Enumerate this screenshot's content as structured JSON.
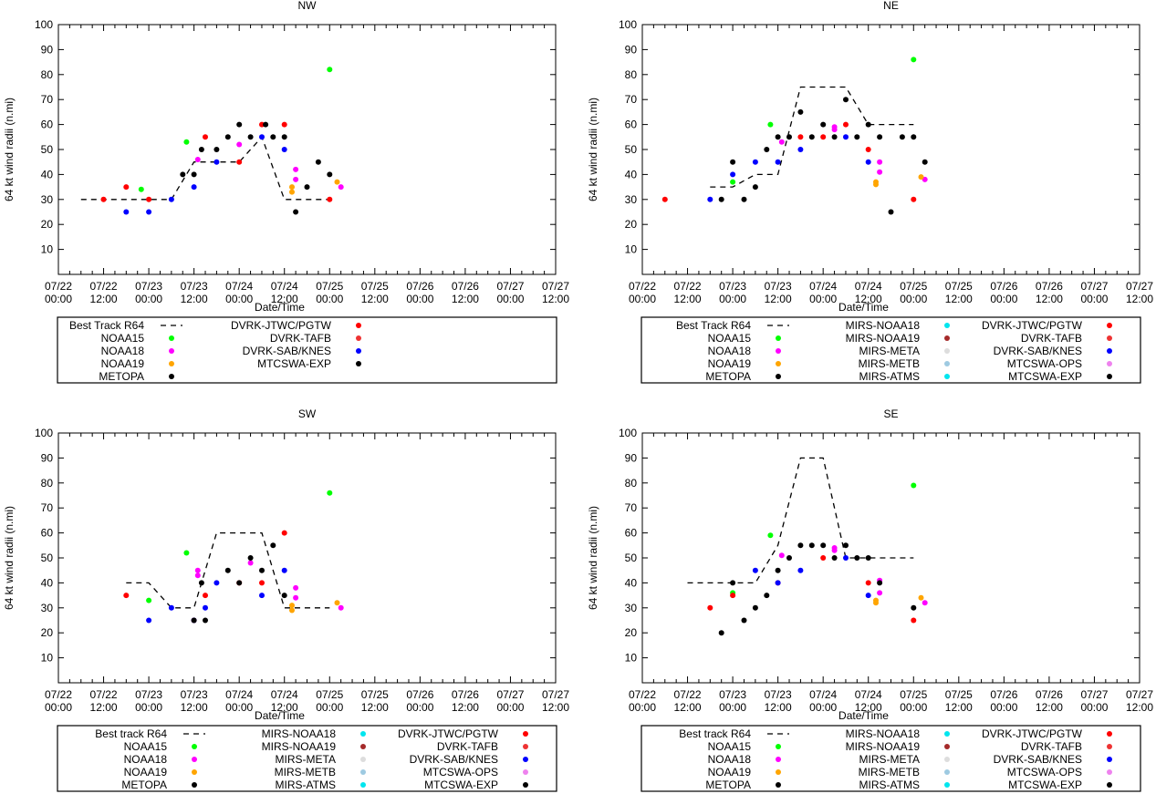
{
  "x_tick_labels": [
    [
      "07/22",
      "00:00"
    ],
    [
      "07/22",
      "12:00"
    ],
    [
      "07/23",
      "00:00"
    ],
    [
      "07/23",
      "12:00"
    ],
    [
      "07/24",
      "00:00"
    ],
    [
      "07/24",
      "12:00"
    ],
    [
      "07/25",
      "00:00"
    ],
    [
      "07/25",
      "12:00"
    ],
    [
      "07/26",
      "00:00"
    ],
    [
      "07/26",
      "12:00"
    ],
    [
      "07/27",
      "00:00"
    ],
    [
      "07/27",
      "12:00"
    ]
  ],
  "colors": {
    "NOAA15": "#00ff00",
    "NOAA18": "#ff00ff",
    "NOAA19": "#ffa500",
    "METOPA": "#000000",
    "MIRS-NOAA18": "#00e5ee",
    "MIRS-NOAA19": "#a52a2a",
    "MIRS-META": "#dddddd",
    "MIRS-METB": "#9ecae1",
    "MIRS-ATMS": "#00e5ee",
    "DVRK-JTWC/PGTW": "#ff0000",
    "DVRK-TAFB": "#ee3333",
    "DVRK-SAB/KNES": "#0000ff",
    "MTCSWA-OPS": "#ee82ee",
    "MTCSWA-EXP": "#000000"
  },
  "chart_data": [
    {
      "type": "scatter",
      "title": "NW",
      "xlabel": "Date/Time",
      "ylabel": "64 kt wind radii (n.mi)",
      "ylim": [
        0,
        100
      ],
      "xlim": [
        0,
        132
      ],
      "yticks": [
        10,
        20,
        30,
        40,
        50,
        60,
        70,
        80,
        90,
        100
      ],
      "best_track": {
        "name": "Best Track R64",
        "x": [
          6,
          18,
          30,
          36,
          42,
          48,
          54,
          60,
          66,
          72
        ],
        "y": [
          30,
          30,
          30,
          45,
          45,
          45,
          55,
          30,
          30,
          30
        ]
      },
      "legend": [
        [
          "Best Track R64",
          "DVRK-JTWC/PGTW"
        ],
        [
          "NOAA15",
          "DVRK-TAFB"
        ],
        [
          "NOAA18",
          "DVRK-SAB/KNES"
        ],
        [
          "NOAA19",
          "MTCSWA-EXP"
        ],
        [
          "METOPA",
          ""
        ]
      ],
      "series": [
        {
          "name": "NOAA15",
          "points": [
            [
              22,
              34
            ],
            [
              34,
              53
            ],
            [
              72,
              82
            ]
          ]
        },
        {
          "name": "NOAA18",
          "points": [
            [
              37,
              46
            ],
            [
              48,
              52
            ],
            [
              63,
              42
            ],
            [
              63,
              38
            ],
            [
              75,
              35
            ]
          ]
        },
        {
          "name": "NOAA19",
          "points": [
            [
              62,
              35
            ],
            [
              62,
              33
            ],
            [
              74,
              37
            ]
          ]
        },
        {
          "name": "DVRK-JTWC/PGTW",
          "points": [
            [
              12,
              30
            ],
            [
              18,
              35
            ],
            [
              24,
              30
            ],
            [
              39,
              55
            ],
            [
              48,
              45
            ],
            [
              54,
              60
            ],
            [
              60,
              60
            ],
            [
              72,
              30
            ]
          ]
        },
        {
          "name": "DVRK-SAB/KNES",
          "points": [
            [
              18,
              25
            ],
            [
              24,
              25
            ],
            [
              30,
              30
            ],
            [
              36,
              35
            ],
            [
              42,
              45
            ],
            [
              54,
              55
            ],
            [
              60,
              50
            ]
          ]
        },
        {
          "name": "MTCSWA-EXP",
          "points": [
            [
              33,
              40
            ],
            [
              36,
              40
            ],
            [
              38,
              50
            ],
            [
              42,
              50
            ],
            [
              45,
              55
            ],
            [
              48,
              60
            ],
            [
              51,
              55
            ],
            [
              55,
              60
            ],
            [
              57,
              55
            ],
            [
              60,
              55
            ],
            [
              63,
              25
            ],
            [
              66,
              35
            ],
            [
              69,
              45
            ],
            [
              72,
              40
            ]
          ]
        }
      ]
    },
    {
      "type": "scatter",
      "title": "NE",
      "xlabel": "Date/Time",
      "ylabel": "64 kt wind radii (n.mi)",
      "ylim": [
        0,
        100
      ],
      "xlim": [
        0,
        132
      ],
      "yticks": [
        10,
        20,
        30,
        40,
        50,
        60,
        70,
        80,
        90,
        100
      ],
      "best_track": {
        "name": "Best Track R64",
        "x": [
          18,
          24,
          30,
          36,
          42,
          48,
          54,
          60,
          66,
          72
        ],
        "y": [
          35,
          35,
          40,
          40,
          75,
          75,
          75,
          60,
          60,
          60
        ]
      },
      "legend": [
        [
          "Best Track R64",
          "MIRS-NOAA18",
          "DVRK-JTWC/PGTW"
        ],
        [
          "NOAA15",
          "MIRS-NOAA19",
          "DVRK-TAFB"
        ],
        [
          "NOAA18",
          "MIRS-META",
          "DVRK-SAB/KNES"
        ],
        [
          "NOAA19",
          "MIRS-METB",
          "MTCSWA-OPS"
        ],
        [
          "METOPA",
          "MIRS-ATMS",
          "MTCSWA-EXP"
        ]
      ],
      "series": [
        {
          "name": "NOAA15",
          "points": [
            [
              24,
              37
            ],
            [
              34,
              60
            ],
            [
              72,
              86
            ]
          ]
        },
        {
          "name": "NOAA18",
          "points": [
            [
              37,
              53
            ],
            [
              51,
              59
            ],
            [
              51,
              58
            ],
            [
              63,
              41
            ],
            [
              63,
              45
            ],
            [
              75,
              38
            ]
          ]
        },
        {
          "name": "NOAA19",
          "points": [
            [
              62,
              37
            ],
            [
              62,
              36
            ],
            [
              74,
              39
            ]
          ]
        },
        {
          "name": "DVRK-JTWC/PGTW",
          "points": [
            [
              6,
              30
            ],
            [
              42,
              55
            ],
            [
              48,
              55
            ],
            [
              54,
              60
            ],
            [
              60,
              50
            ],
            [
              72,
              30
            ]
          ]
        },
        {
          "name": "DVRK-SAB/KNES",
          "points": [
            [
              18,
              30
            ],
            [
              24,
              40
            ],
            [
              30,
              45
            ],
            [
              36,
              45
            ],
            [
              42,
              50
            ],
            [
              54,
              55
            ],
            [
              60,
              45
            ]
          ]
        },
        {
          "name": "MTCSWA-EXP",
          "points": [
            [
              21,
              30
            ],
            [
              24,
              45
            ],
            [
              27,
              30
            ],
            [
              30,
              35
            ],
            [
              33,
              50
            ],
            [
              36,
              55
            ],
            [
              39,
              55
            ],
            [
              42,
              65
            ],
            [
              45,
              55
            ],
            [
              48,
              60
            ],
            [
              51,
              55
            ],
            [
              54,
              70
            ],
            [
              57,
              55
            ],
            [
              60,
              60
            ],
            [
              63,
              55
            ],
            [
              66,
              25
            ],
            [
              69,
              55
            ],
            [
              72,
              55
            ],
            [
              75,
              45
            ]
          ]
        }
      ]
    },
    {
      "type": "scatter",
      "title": "SW",
      "xlabel": "Date/Time",
      "ylabel": "64 kt wind radii (n.mi)",
      "ylim": [
        0,
        100
      ],
      "xlim": [
        0,
        132
      ],
      "yticks": [
        10,
        20,
        30,
        40,
        50,
        60,
        70,
        80,
        90,
        100
      ],
      "best_track": {
        "name": "Best track R64",
        "x": [
          18,
          24,
          30,
          36,
          42,
          48,
          54,
          60,
          66,
          72
        ],
        "y": [
          40,
          40,
          30,
          30,
          60,
          60,
          60,
          30,
          30,
          30
        ]
      },
      "legend": [
        [
          "Best track R64",
          "MIRS-NOAA18",
          "DVRK-JTWC/PGTW"
        ],
        [
          "NOAA15",
          "MIRS-NOAA19",
          "DVRK-TAFB"
        ],
        [
          "NOAA18",
          "MIRS-META",
          "DVRK-SAB/KNES"
        ],
        [
          "NOAA19",
          "MIRS-METB",
          "MTCSWA-OPS"
        ],
        [
          "METOPA",
          "MIRS-ATMS",
          "MTCSWA-EXP"
        ]
      ],
      "series": [
        {
          "name": "NOAA15",
          "points": [
            [
              24,
              33
            ],
            [
              34,
              52
            ],
            [
              72,
              76
            ]
          ]
        },
        {
          "name": "NOAA18",
          "points": [
            [
              37,
              43
            ],
            [
              37,
              45
            ],
            [
              51,
              48
            ],
            [
              63,
              38
            ],
            [
              63,
              34
            ],
            [
              75,
              30
            ]
          ]
        },
        {
          "name": "NOAA19",
          "points": [
            [
              62,
              31
            ],
            [
              62,
              29
            ],
            [
              74,
              32
            ]
          ]
        },
        {
          "name": "DVRK-JTWC/PGTW",
          "points": [
            [
              18,
              35
            ],
            [
              36,
              25
            ],
            [
              39,
              35
            ],
            [
              48,
              40
            ],
            [
              54,
              40
            ],
            [
              60,
              60
            ]
          ]
        },
        {
          "name": "DVRK-SAB/KNES",
          "points": [
            [
              24,
              25
            ],
            [
              30,
              30
            ],
            [
              36,
              25
            ],
            [
              39,
              30
            ],
            [
              42,
              40
            ],
            [
              54,
              35
            ],
            [
              60,
              45
            ]
          ]
        },
        {
          "name": "MTCSWA-EXP",
          "points": [
            [
              36,
              25
            ],
            [
              38,
              40
            ],
            [
              39,
              25
            ],
            [
              45,
              45
            ],
            [
              48,
              40
            ],
            [
              51,
              50
            ],
            [
              54,
              45
            ],
            [
              57,
              55
            ],
            [
              60,
              35
            ]
          ]
        }
      ]
    },
    {
      "type": "scatter",
      "title": "SE",
      "xlabel": "Date/Time",
      "ylabel": "64 kt wind radii (n.mi)",
      "ylim": [
        0,
        100
      ],
      "xlim": [
        0,
        132
      ],
      "yticks": [
        10,
        20,
        30,
        40,
        50,
        60,
        70,
        80,
        90,
        100
      ],
      "best_track": {
        "name": "Best track R64",
        "x": [
          12,
          18,
          24,
          30,
          36,
          42,
          48,
          54,
          60,
          66,
          72
        ],
        "y": [
          40,
          40,
          40,
          40,
          55,
          90,
          90,
          50,
          50,
          50,
          50
        ]
      },
      "legend": [
        [
          "Best track R64",
          "MIRS-NOAA18",
          "DVRK-JTWC/PGTW"
        ],
        [
          "NOAA15",
          "MIRS-NOAA19",
          "DVRK-TAFB"
        ],
        [
          "NOAA18",
          "MIRS-META",
          "DVRK-SAB/KNES"
        ],
        [
          "NOAA19",
          "MIRS-METB",
          "MTCSWA-OPS"
        ],
        [
          "METOPA",
          "MIRS-ATMS",
          "MTCSWA-EXP"
        ]
      ],
      "series": [
        {
          "name": "NOAA15",
          "points": [
            [
              24,
              36
            ],
            [
              34,
              59
            ],
            [
              72,
              79
            ]
          ]
        },
        {
          "name": "NOAA18",
          "points": [
            [
              37,
              51
            ],
            [
              51,
              54
            ],
            [
              51,
              53
            ],
            [
              63,
              41
            ],
            [
              63,
              36
            ],
            [
              75,
              32
            ]
          ]
        },
        {
          "name": "NOAA19",
          "points": [
            [
              62,
              33
            ],
            [
              62,
              32
            ],
            [
              74,
              34
            ]
          ]
        },
        {
          "name": "DVRK-JTWC/PGTW",
          "points": [
            [
              18,
              30
            ],
            [
              24,
              35
            ],
            [
              36,
              40
            ],
            [
              48,
              50
            ],
            [
              60,
              40
            ],
            [
              72,
              25
            ]
          ]
        },
        {
          "name": "DVRK-SAB/KNES",
          "points": [
            [
              30,
              45
            ],
            [
              36,
              40
            ],
            [
              42,
              45
            ],
            [
              54,
              50
            ],
            [
              60,
              35
            ]
          ]
        },
        {
          "name": "MTCSWA-EXP",
          "points": [
            [
              21,
              20
            ],
            [
              24,
              40
            ],
            [
              27,
              25
            ],
            [
              30,
              30
            ],
            [
              33,
              35
            ],
            [
              36,
              45
            ],
            [
              39,
              50
            ],
            [
              42,
              55
            ],
            [
              45,
              55
            ],
            [
              48,
              55
            ],
            [
              51,
              50
            ],
            [
              54,
              55
            ],
            [
              57,
              50
            ],
            [
              60,
              50
            ],
            [
              63,
              40
            ],
            [
              72,
              30
            ]
          ]
        }
      ]
    }
  ]
}
